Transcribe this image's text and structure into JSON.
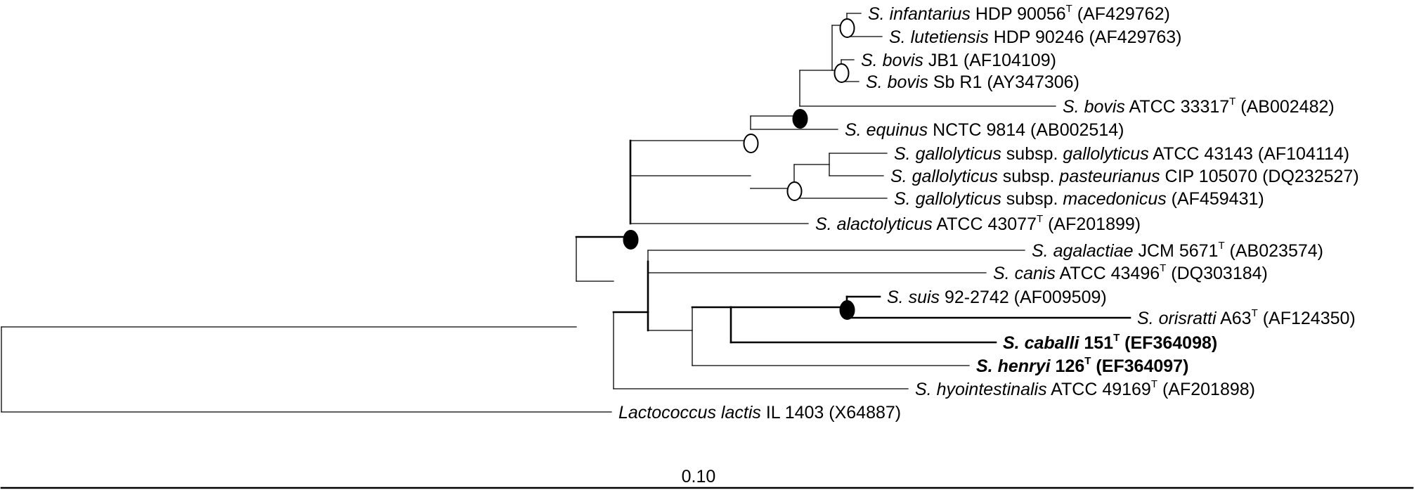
{
  "taxa": [
    {
      "id": "inf",
      "name": "S. infantarius",
      "strain": "HDP 90056",
      "type_strain": true,
      "accession": "(AF429762)",
      "bold": false
    },
    {
      "id": "lut",
      "name": "S. lutetiensis",
      "strain": "HDP 90246",
      "type_strain": false,
      "accession": "(AF429763)",
      "bold": false
    },
    {
      "id": "bjb",
      "name": "S. bovis",
      "strain": "JB1",
      "type_strain": false,
      "accession": "(AF104109)",
      "bold": false
    },
    {
      "id": "bsb",
      "name": "S. bovis",
      "strain": "Sb R1",
      "type_strain": false,
      "accession": "(AY347306)",
      "bold": false
    },
    {
      "id": "bat",
      "name": "S. bovis",
      "strain": "ATCC 33317",
      "type_strain": true,
      "accession": "(AB002482)",
      "bold": false
    },
    {
      "id": "equ",
      "name": "S. equinus",
      "strain": "NCTC 9814",
      "type_strain": false,
      "accession": "(AB002514)",
      "bold": false
    },
    {
      "id": "ggl",
      "name": "S. gallolyticus",
      "mid": " subsp. ",
      "name2": "gallolyticus",
      "strain": "ATCC 43143",
      "type_strain": false,
      "accession": "(AF104114)",
      "bold": false
    },
    {
      "id": "gpa",
      "name": "S. gallolyticus",
      "mid": " subsp. ",
      "name2": "pasteurianus",
      "strain": "CIP 105070",
      "type_strain": false,
      "accession": "(DQ232527)",
      "bold": false
    },
    {
      "id": "gma",
      "name": "S. gallolyticus",
      "mid": " subsp. ",
      "name2": "macedonicus",
      "strain": "",
      "type_strain": false,
      "accession": "(AF459431)",
      "bold": false
    },
    {
      "id": "ala",
      "name": "S. alactolyticus",
      "strain": "ATCC 43077",
      "type_strain": true,
      "accession": "(AF201899)",
      "bold": false
    },
    {
      "id": "aga",
      "name": "S. agalactiae",
      "strain": "JCM 5671",
      "type_strain": true,
      "accession": "(AB023574)",
      "bold": false
    },
    {
      "id": "can",
      "name": "S. canis",
      "strain": "ATCC 43496",
      "type_strain": true,
      "accession": "(DQ303184)",
      "bold": false
    },
    {
      "id": "sui",
      "name": "S. suis",
      "strain": "92-2742",
      "type_strain": false,
      "accession": "(AF009509)",
      "bold": false
    },
    {
      "id": "ori",
      "name": "S. orisratti",
      "strain": "A63",
      "type_strain": true,
      "accession": "(AF124350)",
      "bold": false
    },
    {
      "id": "cab",
      "name": "S. caballi",
      "strain": "151",
      "type_strain": true,
      "accession": "(EF364098)",
      "bold": true
    },
    {
      "id": "hen",
      "name": "S. henryi",
      "strain": "126",
      "type_strain": true,
      "accession": "(EF364097)",
      "bold": true
    },
    {
      "id": "hyo",
      "name": "S. hyointestinalis",
      "strain": "ATCC 49169",
      "type_strain": true,
      "accession": "(AF201898)",
      "bold": false
    },
    {
      "id": "lac",
      "name": "Lactococcus lactis",
      "strain": "IL 1403",
      "type_strain": false,
      "accession": "(X64887)",
      "bold": false
    }
  ],
  "type_marker": "T",
  "scale_bar": {
    "label": "0.10",
    "value": 0.1
  },
  "legend_nodes": {
    "filled": "filled-circle",
    "open": "open-circle"
  }
}
